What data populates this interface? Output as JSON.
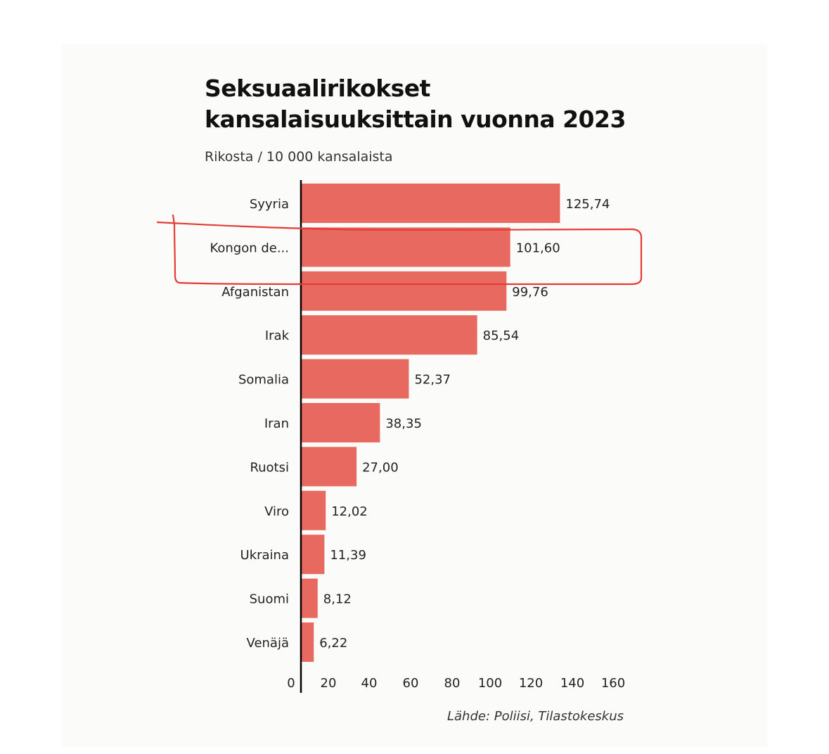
{
  "chart_data": {
    "type": "bar",
    "orientation": "horizontal",
    "title": "Seksuaalirikokset kansalaisuuksittain vuonna 2023",
    "subtitle": "Rikosta / 10 000 kansalaista",
    "source": "Lähde: Poliisi, Tilastokeskus",
    "categories": [
      "Syyria",
      "Kongon de...",
      "Afganistan",
      "Irak",
      "Somalia",
      "Iran",
      "Ruotsi",
      "Viro",
      "Ukraina",
      "Suomi",
      "Venäjä"
    ],
    "values": [
      125.74,
      101.6,
      99.76,
      85.54,
      52.37,
      38.35,
      27.0,
      12.02,
      11.39,
      8.12,
      6.22
    ],
    "value_labels": [
      "125,74",
      "101,60",
      "99,76",
      "85,54",
      "52,37",
      "38,35",
      "27,00",
      "12,02",
      "11,39",
      "8,12",
      "6,22"
    ],
    "x_ticks": [
      0,
      20,
      40,
      60,
      80,
      100,
      120,
      140,
      160
    ],
    "xlim": [
      0,
      160
    ],
    "bar_color": "#e8695f",
    "highlighted_category": "Kongon de...",
    "annotation_color": "#e53b34",
    "grid": false,
    "legend": "none"
  }
}
